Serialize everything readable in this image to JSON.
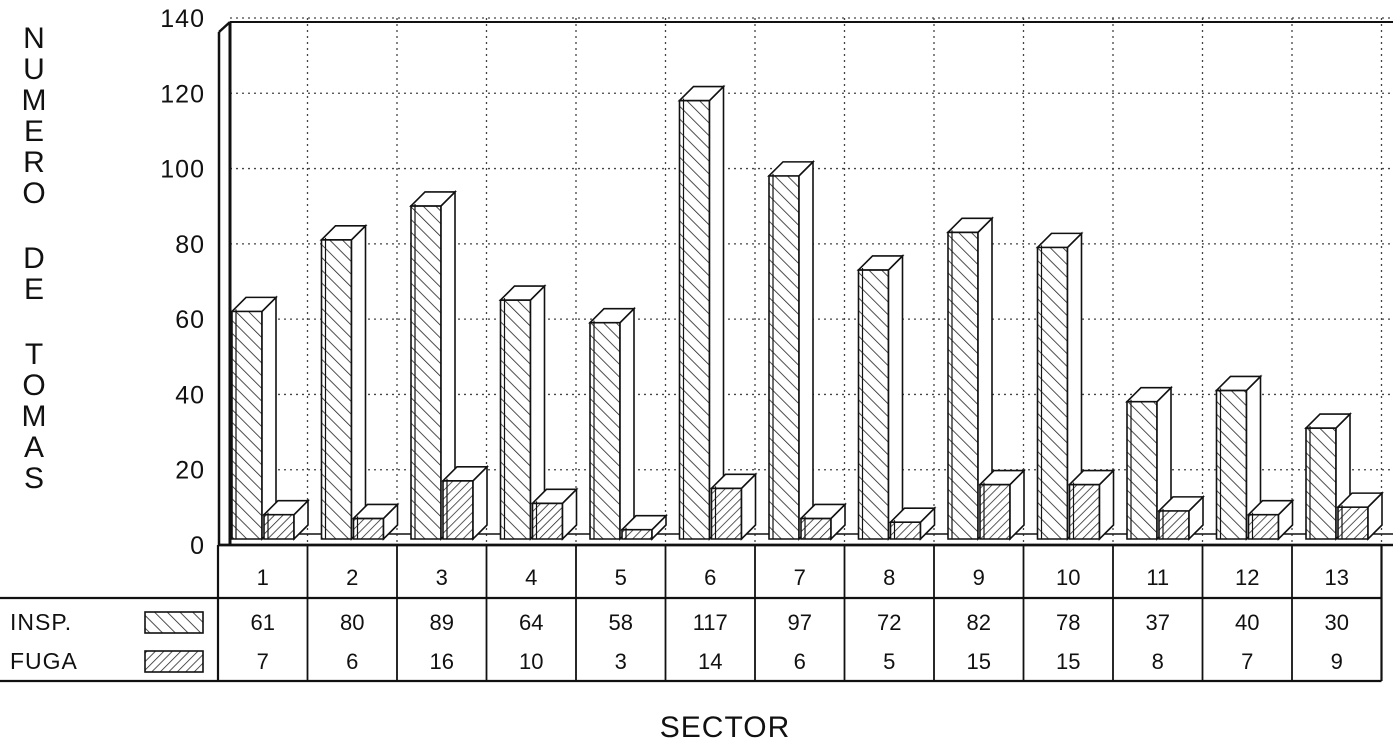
{
  "chart_data": {
    "type": "bar",
    "title": "",
    "ylabel": "NUMERO DE TOMAS",
    "ylabel_lines": [
      "NUMERO",
      "DE",
      "TOMAS"
    ],
    "xlabel": "SECTOR",
    "categories": [
      "1",
      "2",
      "3",
      "4",
      "5",
      "6",
      "7",
      "8",
      "9",
      "10",
      "11",
      "12",
      "13"
    ],
    "yticks": [
      "0",
      "20",
      "40",
      "60",
      "80",
      "100",
      "120",
      "140"
    ],
    "ylim": [
      0,
      140
    ],
    "grid": true,
    "style": "3d-hatched",
    "series": [
      {
        "name": "INSP.",
        "values": [
          61,
          80,
          89,
          64,
          58,
          117,
          97,
          72,
          82,
          78,
          37,
          40,
          30
        ],
        "hatch": "diagonal-right"
      },
      {
        "name": "FUGA",
        "values": [
          7,
          6,
          16,
          10,
          3,
          14,
          6,
          5,
          15,
          15,
          8,
          7,
          9
        ],
        "hatch": "diagonal-left"
      }
    ],
    "table": true
  }
}
